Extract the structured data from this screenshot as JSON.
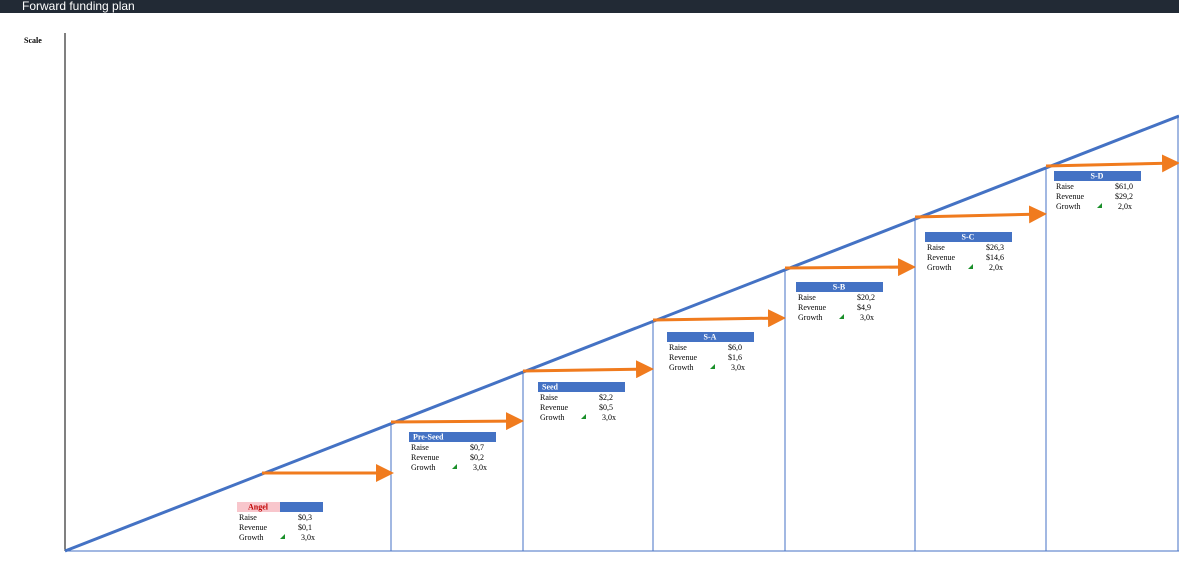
{
  "header": {
    "title": "Forward funding plan"
  },
  "axis_label": "Scale",
  "row_labels": [
    "Raise",
    "Revenue",
    "Growth"
  ],
  "stages": [
    {
      "name": "Angel",
      "raise": "$0,3",
      "revenue": "$0,1",
      "growth": "3,0x"
    },
    {
      "name": "Pre-Seed",
      "raise": "$0,7",
      "revenue": "$0,2",
      "growth": "3,0x"
    },
    {
      "name": "Seed",
      "raise": "$2,2",
      "revenue": "$0,5",
      "growth": "3,0x"
    },
    {
      "name": "S-A",
      "raise": "$6,0",
      "revenue": "$1,6",
      "growth": "3,0x"
    },
    {
      "name": "S-B",
      "raise": "$20,2",
      "revenue": "$4,9",
      "growth": "3,0x"
    },
    {
      "name": "S-C",
      "raise": "$26,3",
      "revenue": "$14,6",
      "growth": "2,0x"
    },
    {
      "name": "S-D",
      "raise": "$61,0",
      "revenue": "$29,2",
      "growth": "2,0x"
    }
  ]
}
